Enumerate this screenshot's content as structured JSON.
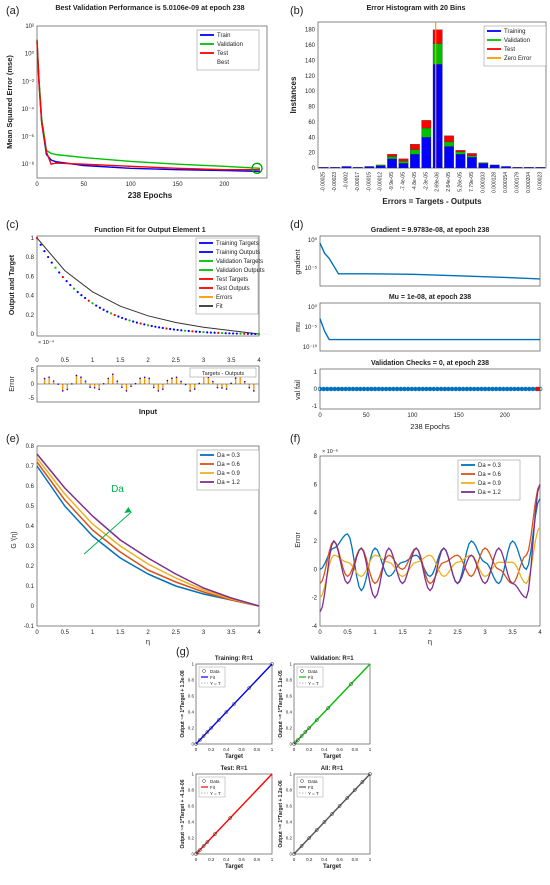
{
  "colors": {
    "train": "#0000ff",
    "validation": "#00c000",
    "test": "#ff0000",
    "best_marker": "#00a000",
    "zero_error": "#ff9900",
    "axes": "#333333",
    "blue": "#0072bd",
    "orange": "#d95319",
    "yellow": "#edb120",
    "purple": "#7e2f8e",
    "green": "#00b050",
    "gray": "#555555"
  },
  "panels": {
    "a": {
      "label": "(a)",
      "title": "Best Validation Performance is 5.0106e-09 at epoch 238",
      "xlabel": "238 Epochs",
      "ylabel": "Mean Squared Error  (mse)",
      "legend": [
        "Train",
        "Validation",
        "Test",
        "Best"
      ],
      "yticks": [
        "10²",
        "10⁰",
        "10⁻²",
        "10⁻⁴",
        "10⁻⁶",
        "10⁻⁸"
      ],
      "xticks": [
        "0",
        "50",
        "100",
        "150",
        "200"
      ]
    },
    "b": {
      "label": "(b)",
      "title": "Error Histogram with 20 Bins",
      "ylabel": "Instances",
      "xlabel": "Errors = Targets - Outputs",
      "legend": [
        "Training",
        "Validation",
        "Test",
        "Zero Error"
      ],
      "yticks": [
        "0",
        "20",
        "40",
        "60",
        "80",
        "100",
        "120",
        "140",
        "160",
        "180"
      ],
      "xticks": [
        "-0.00025",
        "-0.00023",
        "-0.0002",
        "-0.00017",
        "-0.00015",
        "-0.00012",
        "-9.9e-05",
        "-7.4e-05",
        "-4.8e-05",
        "-2.3e-05",
        "2.69e-06",
        "2.84e-05",
        "5.26e-05",
        "7.79e-05",
        "0.000103",
        "0.000128",
        "0.000154",
        "0.000179",
        "0.000204",
        "0.00023"
      ]
    },
    "c": {
      "label": "(c)",
      "title": "Function Fit for Output Element 1",
      "ylabel": "Output and Target",
      "xlabel": "Input",
      "error_label": "Error",
      "scale": "× 10⁻⁴",
      "legend": [
        "Training Targets",
        "Training Outputs",
        "Validation Targets",
        "Validation Outputs",
        "Test Targets",
        "Test Outputs",
        "Errors",
        "Fit"
      ],
      "err_legend": "Targets - Outputs",
      "yticks": [
        "1",
        "0.8",
        "0.6",
        "0.4",
        "0.2",
        "0"
      ],
      "xticks": [
        "0",
        "0.5",
        "1",
        "1.5",
        "2",
        "2.5",
        "3",
        "3.5",
        "4"
      ],
      "err_yticks": [
        "5",
        "0",
        "-5"
      ]
    },
    "d": {
      "label": "(d)",
      "g_title": "Gradient = 9.9783e-08, at epoch 238",
      "g_ylabel": "gradient",
      "g_yticks": [
        "10⁰",
        "10⁻⁵"
      ],
      "mu_title": "Mu = 1e-08, at epoch 238",
      "mu_ylabel": "mu",
      "mu_yticks": [
        "10⁰",
        "10⁻⁵",
        "10⁻¹⁰"
      ],
      "v_title": "Validation Checks = 0, at epoch 238",
      "v_ylabel": "val fail",
      "v_yticks": [
        "1",
        "0",
        "-1"
      ],
      "xlabel": "238 Epochs",
      "xticks": [
        "0",
        "50",
        "100",
        "150",
        "200"
      ]
    },
    "e": {
      "label": "(e)",
      "ylabel": "G ′(η)",
      "xlabel": "η",
      "annotation": "Da",
      "legend": [
        "Da = 0.3",
        "Da = 0.6",
        "Da = 0.9",
        "Da = 1.2"
      ],
      "yticks": [
        "0.8",
        "0.7",
        "0.6",
        "0.5",
        "0.4",
        "0.3",
        "0.2",
        "0.1",
        "0",
        "-0.1"
      ],
      "xticks": [
        "0",
        "0.5",
        "1",
        "1.5",
        "2",
        "2.5",
        "3",
        "3.5",
        "4"
      ]
    },
    "f": {
      "label": "(f)",
      "ylabel": "Error",
      "xlabel": "η",
      "scale": "× 10⁻⁶",
      "legend": [
        "Da = 0.3",
        "Da = 0.6",
        "Da = 0.9",
        "Da = 1.2"
      ],
      "yticks": [
        "8",
        "6",
        "4",
        "2",
        "0",
        "-2",
        "-4"
      ],
      "xticks": [
        "0",
        "0.5",
        "1",
        "1.5",
        "2",
        "2.5",
        "3",
        "3.5",
        "4"
      ]
    },
    "g": {
      "label": "(g)",
      "subplots": [
        {
          "title": "Training: R=1",
          "ylabel": "Output ~= 1*Target + 1.3e-08",
          "legend": [
            "Data",
            "Fit",
            "Y = T"
          ]
        },
        {
          "title": "Validation: R=1",
          "ylabel": "Output ~= 1*Target + 1.1e-05",
          "legend": [
            "Data",
            "Fit",
            "Y = T"
          ]
        },
        {
          "title": "Test: R=1",
          "ylabel": "Output ~= 1*Target + -4.1e-06",
          "legend": [
            "Data",
            "Fit",
            "Y = T"
          ]
        },
        {
          "title": "All: R=1",
          "ylabel": "Output ~= 1*Target + 1.2e-06",
          "legend": [
            "Data",
            "Fit",
            "Y = T"
          ]
        }
      ],
      "xlabel": "Target",
      "ticks": [
        "0",
        "0.2",
        "0.4",
        "0.6",
        "0.8",
        "1"
      ]
    }
  },
  "chart_data": [
    {
      "type": "line",
      "title": "Best Validation Performance is 5.0106e-09 at epoch 238",
      "xlabel": "238 Epochs",
      "ylabel": "Mean Squared Error  (mse)",
      "yscale": "log",
      "xlim": [
        0,
        238
      ],
      "ylim": [
        1e-09,
        100
      ],
      "series": [
        {
          "name": "Train",
          "x": [
            0,
            2,
            5,
            10,
            15,
            20,
            50,
            100,
            150,
            200,
            238
          ],
          "y": [
            10,
            0.01,
            1e-05,
            5e-08,
            2e-08,
            1.5e-08,
            8e-09,
            5e-09,
            4e-09,
            3.5e-09,
            3e-09
          ]
        },
        {
          "name": "Validation",
          "x": [
            0,
            2,
            5,
            10,
            15,
            20,
            50,
            100,
            150,
            200,
            238
          ],
          "y": [
            10,
            0.02,
            2e-05,
            1e-07,
            6e-08,
            5e-08,
            3e-08,
            1.6e-08,
            1e-08,
            7e-09,
            5e-09
          ]
        },
        {
          "name": "Test",
          "x": [
            0,
            2,
            5,
            10,
            15,
            20,
            50,
            100,
            150,
            200,
            238
          ],
          "y": [
            8,
            0.01,
            1e-05,
            8e-08,
            1e-08,
            1.2e-08,
            1e-08,
            7e-09,
            5e-09,
            4e-09,
            4e-09
          ]
        }
      ],
      "best": {
        "name": "Best",
        "x": 238,
        "y": 5.0106e-09
      }
    },
    {
      "type": "bar",
      "title": "Error Histogram with 20 Bins",
      "xlabel": "Errors = Targets - Outputs",
      "ylabel": "Instances",
      "ylim": [
        0,
        190
      ],
      "categories": [
        "-0.00025",
        "-0.00023",
        "-0.0002",
        "-0.00017",
        "-0.00015",
        "-0.00012",
        "-9.9e-05",
        "-7.4e-05",
        "-4.8e-05",
        "-2.3e-05",
        "2.69e-06",
        "2.84e-05",
        "5.26e-05",
        "7.79e-05",
        "0.000103",
        "0.000128",
        "0.000154",
        "0.000179",
        "0.000204",
        "0.00023"
      ],
      "series": [
        {
          "name": "Training",
          "values": [
            1,
            1,
            2,
            1,
            2,
            3,
            12,
            6,
            18,
            40,
            135,
            28,
            18,
            14,
            6,
            4,
            2,
            1,
            1,
            1
          ]
        },
        {
          "name": "Validation",
          "values": [
            0,
            0,
            0,
            0,
            0,
            1,
            3,
            3,
            6,
            12,
            27,
            6,
            3,
            2,
            1,
            0,
            0,
            0,
            0,
            0
          ]
        },
        {
          "name": "Test",
          "values": [
            0,
            0,
            0,
            0,
            0,
            0,
            3,
            3,
            7,
            10,
            18,
            8,
            2,
            3,
            0,
            0,
            0,
            0,
            0,
            0
          ]
        }
      ],
      "zero_error": "Zero Error"
    },
    {
      "type": "line",
      "title": "Function Fit for Output Element 1",
      "xlabel": "Input",
      "ylabel": "Output and Target",
      "xlim": [
        0,
        4
      ],
      "ylim": [
        0,
        1
      ],
      "series": [
        {
          "name": "Fit",
          "x": [
            0,
            0.5,
            1,
            1.5,
            2,
            2.5,
            3,
            3.5,
            4
          ],
          "y": [
            1.0,
            0.66,
            0.44,
            0.29,
            0.19,
            0.12,
            0.07,
            0.035,
            0.0
          ]
        }
      ]
    },
    {
      "type": "line",
      "title": "Gradient = 9.9783e-08, at epoch 238",
      "ylabel": "gradient",
      "yscale": "log",
      "xlim": [
        0,
        238
      ],
      "series": [
        {
          "name": "gradient",
          "x": [
            0,
            5,
            10,
            20,
            50,
            100,
            150,
            200,
            238
          ],
          "y": [
            1,
            0.01,
            0.001,
            1e-06,
            1e-06,
            8e-07,
            4e-07,
            2e-07,
            1e-07
          ]
        }
      ]
    },
    {
      "type": "line",
      "title": "Mu = 1e-08, at epoch 238",
      "ylabel": "mu",
      "yscale": "log",
      "xlim": [
        0,
        238
      ],
      "series": [
        {
          "name": "mu",
          "x": [
            0,
            5,
            10,
            15,
            238
          ],
          "y": [
            0.001,
            1e-06,
            1e-08,
            1e-08,
            1e-08
          ]
        }
      ]
    },
    {
      "type": "scatter",
      "title": "Validation Checks = 0, at epoch 238",
      "ylabel": "val fail",
      "xlabel": "238 Epochs",
      "xlim": [
        0,
        238
      ],
      "ylim": [
        -1,
        1
      ],
      "series": [
        {
          "name": "val fail",
          "x": [
            0,
            238
          ],
          "y": [
            0,
            0
          ]
        }
      ]
    },
    {
      "type": "line",
      "xlabel": "η",
      "ylabel": "G ′(η)",
      "xlim": [
        0,
        4
      ],
      "ylim": [
        -0.1,
        0.8
      ],
      "series": [
        {
          "name": "Da = 0.3",
          "x": [
            0,
            0.5,
            1,
            1.5,
            2,
            2.5,
            3,
            3.5,
            4
          ],
          "y": [
            0.7,
            0.5,
            0.35,
            0.24,
            0.16,
            0.1,
            0.06,
            0.03,
            0.0
          ]
        },
        {
          "name": "Da = 0.6",
          "x": [
            0,
            0.5,
            1,
            1.5,
            2,
            2.5,
            3,
            3.5,
            4
          ],
          "y": [
            0.72,
            0.53,
            0.38,
            0.27,
            0.18,
            0.12,
            0.07,
            0.03,
            0.0
          ]
        },
        {
          "name": "Da = 0.9",
          "x": [
            0,
            0.5,
            1,
            1.5,
            2,
            2.5,
            3,
            3.5,
            4
          ],
          "y": [
            0.74,
            0.56,
            0.41,
            0.3,
            0.21,
            0.14,
            0.08,
            0.035,
            0.0
          ]
        },
        {
          "name": "Da = 1.2",
          "x": [
            0,
            0.5,
            1,
            1.5,
            2,
            2.5,
            3,
            3.5,
            4
          ],
          "y": [
            0.76,
            0.59,
            0.45,
            0.33,
            0.24,
            0.16,
            0.09,
            0.04,
            0.0
          ]
        }
      ]
    },
    {
      "type": "line",
      "xlabel": "η",
      "ylabel": "Error",
      "scale": "1e-6",
      "xlim": [
        0,
        4
      ],
      "ylim": [
        -4,
        8
      ],
      "series": [
        {
          "name": "Da = 0.3",
          "x": [
            0,
            0.25,
            0.5,
            0.75,
            1,
            1.25,
            1.5,
            1.75,
            2,
            2.25,
            2.5,
            2.75,
            3,
            3.25,
            3.5,
            3.75,
            4
          ],
          "y": [
            0,
            1.5,
            2.5,
            -1.5,
            1.5,
            -0.5,
            0.5,
            1,
            -0.5,
            1.5,
            -1,
            2,
            0.5,
            -1,
            2,
            0,
            5
          ]
        },
        {
          "name": "Da = 0.6",
          "x": [
            0,
            0.25,
            0.5,
            0.75,
            1,
            1.25,
            1.5,
            1.75,
            2,
            2.25,
            2.5,
            2.75,
            3,
            3.25,
            3.5,
            3.75,
            4
          ],
          "y": [
            -1,
            2,
            -0.5,
            1.5,
            -1,
            1,
            0,
            1.5,
            -1,
            0.5,
            1,
            -0.5,
            1.5,
            0,
            -1,
            1,
            6
          ]
        },
        {
          "name": "Da = 0.9",
          "x": [
            0,
            0.25,
            0.5,
            0.75,
            1,
            1.25,
            1.5,
            1.75,
            2,
            2.25,
            2.5,
            2.75,
            3,
            3.25,
            3.5,
            3.75,
            4
          ],
          "y": [
            -2,
            1,
            0.5,
            -0.5,
            1,
            0.5,
            -0.5,
            0.5,
            1,
            -0.5,
            0.5,
            1,
            -0.5,
            0.5,
            0.5,
            -1,
            3
          ]
        },
        {
          "name": "Da = 1.2",
          "x": [
            0,
            0.25,
            0.5,
            0.75,
            1,
            1.25,
            1.5,
            1.75,
            2,
            2.25,
            2.5,
            2.75,
            3,
            3.25,
            3.5,
            3.75,
            4
          ],
          "y": [
            -3,
            2,
            -1,
            1.5,
            -2,
            1.5,
            -1,
            1.5,
            -1.5,
            1.5,
            -1,
            1,
            -1,
            1.5,
            -1,
            -2,
            6
          ]
        }
      ]
    },
    {
      "type": "scatter",
      "title": "Training: R=1",
      "xlabel": "Target",
      "ylabel": "Output ~= 1*Target + 1.3e-08",
      "xlim": [
        0,
        1
      ],
      "ylim": [
        0,
        1
      ],
      "series": [
        {
          "name": "Data",
          "x": [
            0,
            0.05,
            0.1,
            0.15,
            0.2,
            0.3,
            0.4,
            0.5,
            0.7,
            1.0
          ],
          "y": [
            0,
            0.05,
            0.1,
            0.15,
            0.2,
            0.3,
            0.4,
            0.5,
            0.7,
            1.0
          ]
        },
        {
          "name": "Fit",
          "x": [
            0,
            1
          ],
          "y": [
            0,
            1
          ]
        },
        {
          "name": "Y = T",
          "x": [
            0,
            1
          ],
          "y": [
            0,
            1
          ]
        }
      ]
    },
    {
      "type": "scatter",
      "title": "Validation: R=1",
      "xlabel": "Target",
      "ylabel": "Output ~= 1*Target + 1.1e-05",
      "xlim": [
        0,
        1
      ],
      "ylim": [
        0,
        1
      ],
      "series": [
        {
          "name": "Data",
          "x": [
            0,
            0.02,
            0.05,
            0.1,
            0.15,
            0.2,
            0.3,
            0.45,
            0.75
          ],
          "y": [
            0,
            0.02,
            0.05,
            0.1,
            0.15,
            0.2,
            0.3,
            0.45,
            0.75
          ]
        },
        {
          "name": "Fit",
          "x": [
            0,
            1
          ],
          "y": [
            0,
            1
          ]
        },
        {
          "name": "Y = T",
          "x": [
            0,
            1
          ],
          "y": [
            0,
            1
          ]
        }
      ]
    },
    {
      "type": "scatter",
      "title": "Test: R=1",
      "xlabel": "Target",
      "ylabel": "Output ~= 1*Target + -4.1e-06",
      "xlim": [
        0,
        1
      ],
      "ylim": [
        0,
        1
      ],
      "series": [
        {
          "name": "Data",
          "x": [
            0,
            0.02,
            0.05,
            0.1,
            0.15,
            0.25,
            0.45
          ],
          "y": [
            0,
            0.02,
            0.05,
            0.1,
            0.15,
            0.25,
            0.45
          ]
        },
        {
          "name": "Fit",
          "x": [
            0,
            1
          ],
          "y": [
            0,
            1
          ]
        },
        {
          "name": "Y = T",
          "x": [
            0,
            1
          ],
          "y": [
            0,
            1
          ]
        }
      ]
    },
    {
      "type": "scatter",
      "title": "All: R=1",
      "xlabel": "Target",
      "ylabel": "Output ~= 1*Target + 1.2e-06",
      "xlim": [
        0,
        1
      ],
      "ylim": [
        0,
        1
      ],
      "series": [
        {
          "name": "Data",
          "x": [
            0,
            0.1,
            0.2,
            0.3,
            0.4,
            0.5,
            0.6,
            0.7,
            0.8,
            0.9,
            1.0
          ],
          "y": [
            0,
            0.1,
            0.2,
            0.3,
            0.4,
            0.5,
            0.6,
            0.7,
            0.8,
            0.9,
            1.0
          ]
        },
        {
          "name": "Fit",
          "x": [
            0,
            1
          ],
          "y": [
            0,
            1
          ]
        },
        {
          "name": "Y = T",
          "x": [
            0,
            1
          ],
          "y": [
            0,
            1
          ]
        }
      ]
    }
  ]
}
